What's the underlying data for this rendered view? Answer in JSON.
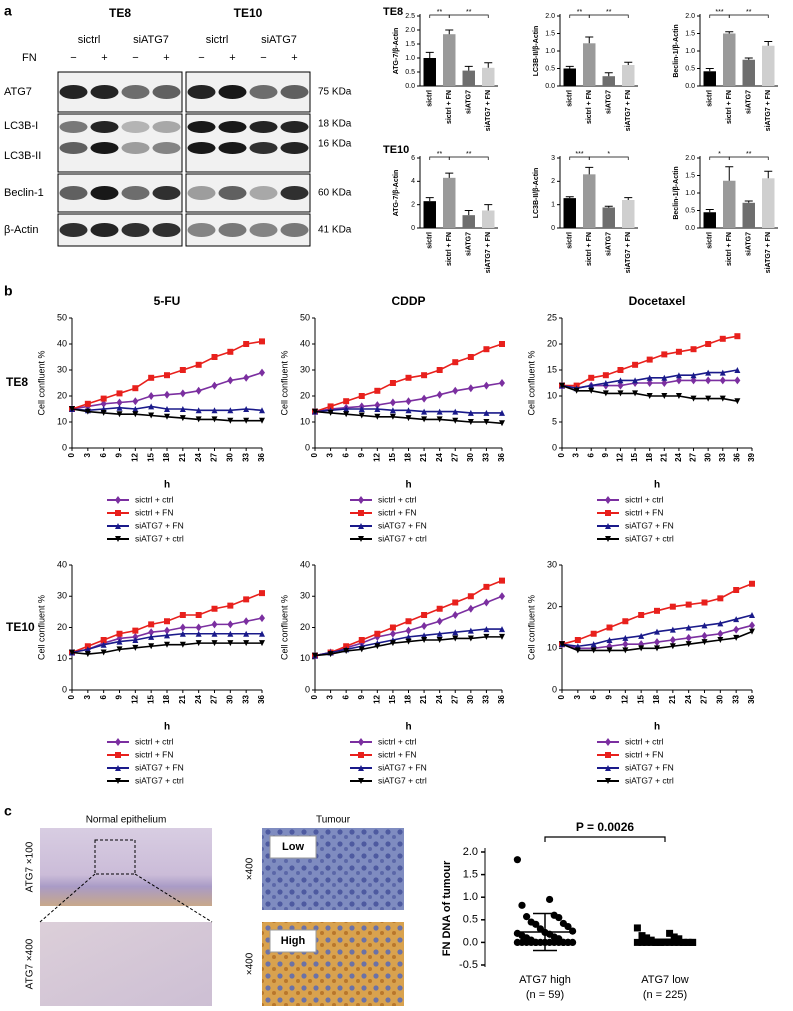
{
  "panels": [
    "a",
    "b",
    "c"
  ],
  "blot": {
    "cell_lines": [
      "TE8",
      "TE10"
    ],
    "groups": [
      "sictrl",
      "siATG7",
      "sictrl",
      "siATG7"
    ],
    "fn_label": "FN",
    "fn": [
      "−",
      "+",
      "−",
      "+",
      "−",
      "+",
      "−",
      "+"
    ],
    "rows": [
      "ATG7",
      "LC3B-I",
      "LC3B-II",
      "Beclin-1",
      "β-Actin"
    ],
    "sizes": [
      "75 KDa",
      "18 KDa",
      "16 KDa",
      "60 KDa",
      "41 KDa"
    ]
  },
  "bar_rows": [
    "TE8",
    "TE10"
  ],
  "line_rows": [
    "TE8",
    "TE10"
  ],
  "images": {
    "columns": [
      "Normal epithelium",
      "Tumour"
    ],
    "labels": [
      "ATG7 ×100",
      "ATG7 ×400",
      "×400",
      "×400"
    ],
    "insets": [
      "Low",
      "High"
    ]
  },
  "chart_data": [
    {
      "type": "bar",
      "ylabel": "ATG-7/β-Actin",
      "categories": [
        "sictrl",
        "sictrl + FN",
        "siATG7",
        "siATG7 + FN"
      ],
      "values": [
        1.0,
        1.85,
        0.55,
        0.65
      ],
      "errors": [
        0.2,
        0.15,
        0.15,
        0.18
      ],
      "colors": [
        "#000000",
        "#9a9a9a",
        "#6e6e6e",
        "#cfcfcf"
      ],
      "ylim": [
        0,
        2.5
      ],
      "yticks": [
        {
          "value": 0,
          "label": "0.0"
        },
        0.5,
        {
          "value": 1,
          "label": "1.0"
        },
        1.5,
        {
          "value": 2,
          "label": "2.0"
        },
        2.5
      ],
      "significance": [
        "**",
        "**"
      ]
    },
    {
      "type": "bar",
      "ylabel": "LC3B-II/β-Actin",
      "categories": [
        "sictrl",
        "sictrl + FN",
        "siATG7",
        "siATG7 + FN"
      ],
      "values": [
        0.5,
        1.22,
        0.28,
        0.6
      ],
      "errors": [
        0.06,
        0.18,
        0.1,
        0.08
      ],
      "colors": [
        "#000000",
        "#9a9a9a",
        "#6e6e6e",
        "#cfcfcf"
      ],
      "ylim": [
        0,
        2
      ],
      "yticks": [
        {
          "value": 0,
          "label": "0.0"
        },
        0.5,
        {
          "value": 1,
          "label": "1.0"
        },
        1.5,
        {
          "value": 2,
          "label": "2.0"
        }
      ],
      "significance": [
        "**",
        "**"
      ]
    },
    {
      "type": "bar",
      "ylabel": "Beclin-1/β-Actin",
      "categories": [
        "sictrl",
        "sictrl + FN",
        "siATG7",
        "siATG7 + FN"
      ],
      "values": [
        0.42,
        1.5,
        0.75,
        1.15
      ],
      "errors": [
        0.08,
        0.05,
        0.05,
        0.12
      ],
      "colors": [
        "#000000",
        "#9a9a9a",
        "#6e6e6e",
        "#cfcfcf"
      ],
      "ylim": [
        0,
        2
      ],
      "yticks": [
        {
          "value": 0,
          "label": "0.0"
        },
        0.5,
        {
          "value": 1,
          "label": "1.0"
        },
        1.5,
        {
          "value": 2,
          "label": "2.0"
        }
      ],
      "significance": [
        "***",
        "**"
      ]
    },
    {
      "type": "bar",
      "ylabel": "ATG-7/β-Actin",
      "categories": [
        "sictrl",
        "sictrl + FN",
        "siATG7",
        "siATG7 + FN"
      ],
      "values": [
        2.3,
        4.3,
        1.1,
        1.5
      ],
      "errors": [
        0.3,
        0.4,
        0.4,
        0.5
      ],
      "colors": [
        "#000000",
        "#9a9a9a",
        "#6e6e6e",
        "#cfcfcf"
      ],
      "ylim": [
        0,
        6
      ],
      "yticks": [
        0,
        2,
        4,
        6
      ],
      "significance": [
        "**",
        "**"
      ]
    },
    {
      "type": "bar",
      "ylabel": "LC3B-II/β-Actin",
      "categories": [
        "sictrl",
        "sictrl + FN",
        "siATG7",
        "siATG7 + FN"
      ],
      "values": [
        1.28,
        2.3,
        0.88,
        1.2
      ],
      "errors": [
        0.06,
        0.3,
        0.05,
        0.1
      ],
      "colors": [
        "#000000",
        "#9a9a9a",
        "#6e6e6e",
        "#cfcfcf"
      ],
      "ylim": [
        0,
        3
      ],
      "yticks": [
        0,
        1,
        2,
        3
      ],
      "significance": [
        "***",
        "*"
      ]
    },
    {
      "type": "bar",
      "ylabel": "Beclin-1/β-Actin",
      "categories": [
        "sictrl",
        "sictrl + FN",
        "siATG7",
        "siATG7 + FN"
      ],
      "values": [
        0.45,
        1.35,
        0.72,
        1.42
      ],
      "errors": [
        0.08,
        0.4,
        0.05,
        0.2
      ],
      "colors": [
        "#000000",
        "#9a9a9a",
        "#6e6e6e",
        "#cfcfcf"
      ],
      "ylim": [
        0,
        2
      ],
      "yticks": [
        {
          "value": 0,
          "label": "0.0"
        },
        0.5,
        {
          "value": 1,
          "label": "1.0"
        },
        1.5,
        {
          "value": 2,
          "label": "2.0"
        }
      ],
      "significance": [
        "*",
        "**"
      ]
    },
    {
      "type": "line",
      "title": "5-FU",
      "ylabel": "Cell confluent %",
      "xlabel": "h",
      "x": [
        0,
        3,
        6,
        9,
        12,
        15,
        18,
        21,
        24,
        27,
        30,
        33,
        36
      ],
      "xlim": [
        0,
        36
      ],
      "xticks": [
        0,
        3,
        6,
        9,
        12,
        15,
        18,
        21,
        24,
        27,
        30,
        33,
        36
      ],
      "ylim": [
        0,
        50
      ],
      "yticks": [
        0,
        10,
        20,
        30,
        40,
        50
      ],
      "series": [
        {
          "name": "sictrl + ctrl",
          "color": "#7b2fa0",
          "marker": "diamond",
          "values": [
            15,
            16,
            17,
            17.5,
            18,
            20,
            20.5,
            21,
            22,
            24,
            26,
            27,
            29
          ]
        },
        {
          "name": "sictrl + FN",
          "color": "#e8201c",
          "marker": "square",
          "values": [
            15,
            17,
            19,
            21,
            23,
            27,
            28,
            30,
            32,
            35,
            37,
            40,
            41
          ]
        },
        {
          "name": "siATG7 + FN",
          "color": "#1a1a8a",
          "marker": "triangle",
          "values": [
            15,
            14.5,
            15,
            15.5,
            15,
            16,
            15,
            15,
            14.5,
            14.5,
            14.5,
            15,
            14.5
          ]
        },
        {
          "name": "siATG7 + ctrl",
          "color": "#000000",
          "marker": "triangle-down",
          "values": [
            15,
            14,
            13.5,
            13,
            13,
            12.5,
            12,
            11.5,
            11,
            11,
            10.5,
            10.5,
            10.5
          ]
        }
      ]
    },
    {
      "type": "line",
      "title": "CDDP",
      "ylabel": "Cell confluent %",
      "xlabel": "h",
      "x": [
        0,
        3,
        6,
        9,
        12,
        15,
        18,
        21,
        24,
        27,
        30,
        33,
        36
      ],
      "xlim": [
        0,
        36
      ],
      "xticks": [
        0,
        3,
        6,
        9,
        12,
        15,
        18,
        21,
        24,
        27,
        30,
        33,
        36
      ],
      "ylim": [
        0,
        50
      ],
      "yticks": [
        0,
        10,
        20,
        30,
        40,
        50
      ],
      "series": [
        {
          "name": "sictrl + ctrl",
          "color": "#7b2fa0",
          "marker": "diamond",
          "values": [
            14,
            15,
            15.5,
            16,
            16.5,
            17.5,
            18,
            19,
            20.5,
            22,
            23,
            24,
            25
          ]
        },
        {
          "name": "sictrl + FN",
          "color": "#e8201c",
          "marker": "square",
          "values": [
            14,
            16,
            18,
            20,
            22,
            25,
            27,
            28,
            30,
            33,
            35,
            38,
            40
          ]
        },
        {
          "name": "siATG7 + FN",
          "color": "#1a1a8a",
          "marker": "triangle",
          "values": [
            14,
            14.5,
            15,
            15,
            15,
            14.5,
            14.5,
            14,
            14,
            14,
            13.5,
            13.5,
            13.5
          ]
        },
        {
          "name": "siATG7 + ctrl",
          "color": "#000000",
          "marker": "triangle-down",
          "values": [
            14,
            13.5,
            13,
            12.5,
            12,
            12,
            11.5,
            11,
            11,
            10.5,
            10,
            10,
            9.5
          ]
        }
      ]
    },
    {
      "type": "line",
      "title": "Docetaxel",
      "ylabel": "Cell confluent %",
      "xlabel": "h",
      "x": [
        0,
        3,
        6,
        9,
        12,
        15,
        18,
        21,
        24,
        27,
        30,
        33,
        36
      ],
      "xlim": [
        0,
        39
      ],
      "xticks": [
        0,
        3,
        6,
        9,
        12,
        15,
        18,
        21,
        24,
        27,
        30,
        33,
        36,
        39
      ],
      "ylim": [
        0,
        25
      ],
      "yticks": [
        0,
        5,
        10,
        15,
        20,
        25
      ],
      "series": [
        {
          "name": "sictrl + ctrl",
          "color": "#7b2fa0",
          "marker": "diamond",
          "values": [
            12,
            11.5,
            12,
            12,
            12,
            12.5,
            12.5,
            12.5,
            13,
            13,
            13,
            13,
            13
          ]
        },
        {
          "name": "sictrl + FN",
          "color": "#e8201c",
          "marker": "square",
          "values": [
            12,
            12,
            13.5,
            14,
            15,
            16,
            17,
            18,
            18.5,
            19,
            20,
            21,
            21.5
          ]
        },
        {
          "name": "siATG7 + FN",
          "color": "#1a1a8a",
          "marker": "triangle",
          "values": [
            12,
            11.5,
            12,
            12.5,
            13,
            13,
            13.5,
            13.5,
            14,
            14,
            14.5,
            14.5,
            15
          ]
        },
        {
          "name": "siATG7 + ctrl",
          "color": "#000000",
          "marker": "triangle-down",
          "values": [
            12,
            11,
            11,
            10.5,
            10.5,
            10.5,
            10,
            10,
            10,
            9.5,
            9.5,
            9.5,
            9
          ]
        }
      ]
    },
    {
      "type": "line",
      "ylabel": "Cell confluent %",
      "xlabel": "h",
      "x": [
        0,
        3,
        6,
        9,
        12,
        15,
        18,
        21,
        24,
        27,
        30,
        33,
        36
      ],
      "xlim": [
        0,
        36
      ],
      "xticks": [
        0,
        3,
        6,
        9,
        12,
        15,
        18,
        21,
        24,
        27,
        30,
        33,
        36
      ],
      "ylim": [
        0,
        40
      ],
      "yticks": [
        0,
        10,
        20,
        30,
        40
      ],
      "series": [
        {
          "name": "sictrl + ctrl",
          "color": "#7b2fa0",
          "marker": "diamond",
          "values": [
            12,
            13,
            15,
            16.5,
            17,
            18.5,
            19,
            20,
            20,
            21,
            21,
            22,
            23
          ]
        },
        {
          "name": "sictrl + FN",
          "color": "#e8201c",
          "marker": "square",
          "values": [
            12,
            14,
            16,
            18,
            19,
            21,
            22,
            24,
            24,
            26,
            27,
            29,
            31
          ]
        },
        {
          "name": "siATG7 + FN",
          "color": "#1a1a8a",
          "marker": "triangle",
          "values": [
            12,
            13,
            14.5,
            15.5,
            16,
            17,
            17.5,
            18,
            18,
            18,
            18,
            18,
            18
          ]
        },
        {
          "name": "siATG7 + ctrl",
          "color": "#000000",
          "marker": "triangle-down",
          "values": [
            12,
            11.5,
            12,
            13,
            13.5,
            14,
            14.5,
            14.5,
            15,
            15,
            15,
            15,
            15
          ]
        }
      ]
    },
    {
      "type": "line",
      "ylabel": "Cell confluent %",
      "xlabel": "h",
      "x": [
        0,
        3,
        6,
        9,
        12,
        15,
        18,
        21,
        24,
        27,
        30,
        33,
        36
      ],
      "xlim": [
        0,
        36
      ],
      "xticks": [
        0,
        3,
        6,
        9,
        12,
        15,
        18,
        21,
        24,
        27,
        30,
        33,
        36
      ],
      "ylim": [
        0,
        40
      ],
      "yticks": [
        0,
        10,
        20,
        30,
        40
      ],
      "series": [
        {
          "name": "sictrl + ctrl",
          "color": "#7b2fa0",
          "marker": "diamond",
          "values": [
            11,
            12,
            13.5,
            15,
            17,
            18,
            19,
            20.5,
            22,
            24,
            26,
            28,
            30
          ]
        },
        {
          "name": "sictrl + FN",
          "color": "#e8201c",
          "marker": "square",
          "values": [
            11,
            12,
            14,
            16,
            18,
            20,
            22,
            24,
            26,
            28,
            30,
            33,
            35
          ]
        },
        {
          "name": "siATG7 + FN",
          "color": "#1a1a8a",
          "marker": "triangle",
          "values": [
            11,
            12,
            13,
            14,
            15,
            16,
            17,
            17.5,
            18,
            18.5,
            19,
            19.5,
            19.5
          ]
        },
        {
          "name": "siATG7 + ctrl",
          "color": "#000000",
          "marker": "triangle-down",
          "values": [
            11,
            11.5,
            12.5,
            13,
            14,
            15,
            15.5,
            16,
            16,
            16.5,
            16.5,
            17,
            17
          ]
        }
      ]
    },
    {
      "type": "line",
      "ylabel": "Cell confluent %",
      "xlabel": "h",
      "x": [
        0,
        3,
        6,
        9,
        12,
        15,
        18,
        21,
        24,
        27,
        30,
        33,
        36
      ],
      "xlim": [
        0,
        36
      ],
      "xticks": [
        0,
        3,
        6,
        9,
        12,
        15,
        18,
        21,
        24,
        27,
        30,
        33,
        36
      ],
      "ylim": [
        0,
        30
      ],
      "yticks": [
        0,
        10,
        20,
        30
      ],
      "series": [
        {
          "name": "sictrl + ctrl",
          "color": "#7b2fa0",
          "marker": "diamond",
          "values": [
            11,
            10,
            10,
            10.5,
            11,
            11,
            11.5,
            12,
            12.5,
            13,
            13.5,
            14.5,
            15.5
          ]
        },
        {
          "name": "sictrl + FN",
          "color": "#e8201c",
          "marker": "square",
          "values": [
            11,
            12,
            13.5,
            15,
            16.5,
            18,
            19,
            20,
            20.5,
            21,
            22,
            24,
            25.5
          ]
        },
        {
          "name": "siATG7 + FN",
          "color": "#1a1a8a",
          "marker": "triangle",
          "values": [
            11,
            10.5,
            11,
            12,
            12.5,
            13,
            14,
            14.5,
            15,
            15.5,
            16,
            17,
            18
          ]
        },
        {
          "name": "siATG7 + ctrl",
          "color": "#000000",
          "marker": "triangle-down",
          "values": [
            11,
            9.5,
            9.5,
            9.5,
            9.5,
            10,
            10,
            10.5,
            11,
            11.5,
            12,
            12.5,
            14
          ]
        }
      ]
    },
    {
      "type": "dot",
      "ylabel": "FN DNA of tumour",
      "categories": [
        "ATG7 high",
        "ATG7 low"
      ],
      "category_notes": [
        "(n = 59)",
        "(n = 225)"
      ],
      "markers": [
        "circle",
        "square"
      ],
      "annotation": "P = 0.0026",
      "ylim": [
        -0.5,
        2
      ],
      "yticks": [
        -0.5,
        {
          "value": 0,
          "label": "0.0"
        },
        0.5,
        {
          "value": 1,
          "label": "1.0"
        },
        1.5,
        {
          "value": 2,
          "label": "2.0"
        }
      ],
      "groups": [
        {
          "values": [
            1.83,
            0.95,
            0.82,
            0.6,
            0.57,
            0.55,
            0.45,
            0.42,
            0.4,
            0.35,
            0.3,
            0.25,
            0.22,
            0.2,
            0.18,
            0.15,
            0.12,
            0.1,
            0.08,
            0.05,
            0,
            0,
            0,
            0,
            0,
            0,
            0,
            0,
            0,
            0,
            0,
            0,
            0,
            0,
            0,
            0
          ],
          "mean": 0.23,
          "sd": 0.41
        },
        {
          "values": [
            0.32,
            0.2,
            0.15,
            0.12,
            0.1,
            0.08,
            0.05,
            0,
            0,
            0,
            0,
            0,
            0,
            0,
            0,
            0,
            0,
            0,
            0,
            0,
            0,
            0,
            0,
            0,
            0
          ],
          "mean": 0.02,
          "sd": 0.05
        }
      ]
    }
  ]
}
